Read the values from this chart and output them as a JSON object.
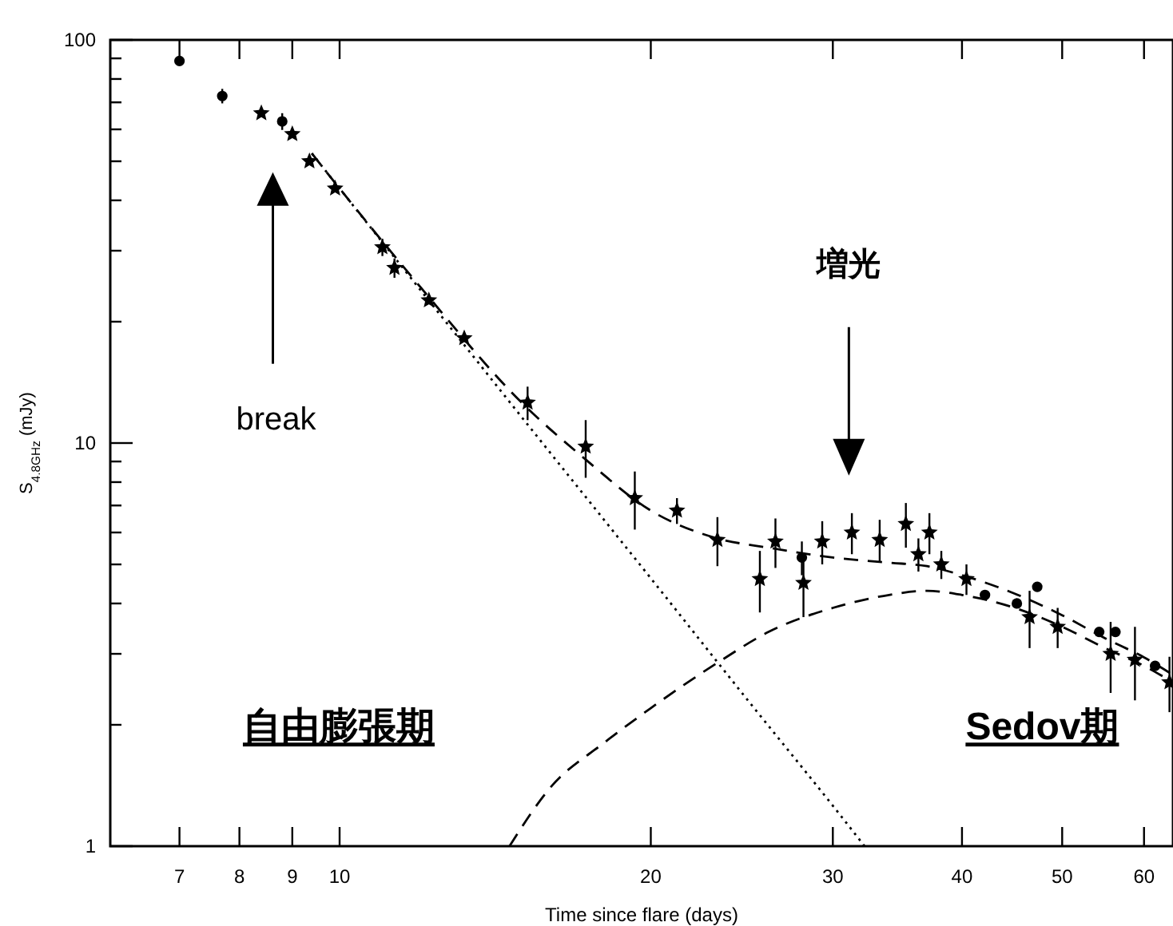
{
  "chart_data": {
    "type": "scatter",
    "log": "xy",
    "xlabel": "Time since flare (days)",
    "ylabel": "S$_{4.8GHz}$ (mJy)",
    "xlim": [
      6,
      64
    ],
    "ylim": [
      1,
      100
    ],
    "xticks": [
      7,
      8,
      9,
      10,
      20,
      30,
      40,
      50,
      60
    ],
    "yticks": [
      1,
      {
        "value": 2,
        "label": null
      },
      {
        "value": 3,
        "label": null
      },
      {
        "value": 4,
        "label": null
      },
      {
        "value": 5,
        "label": null
      },
      {
        "value": 6,
        "label": null
      },
      {
        "value": 7,
        "label": null
      },
      {
        "value": 8,
        "label": null
      },
      {
        "value": 9,
        "label": null
      },
      10,
      {
        "value": 20,
        "label": null
      },
      {
        "value": 30,
        "label": null
      },
      {
        "value": 40,
        "label": null
      },
      {
        "value": 50,
        "label": null
      },
      {
        "value": 60,
        "label": null
      },
      {
        "value": 70,
        "label": null
      },
      {
        "value": 80,
        "label": null
      },
      {
        "value": 90,
        "label": null
      },
      100
    ],
    "grid": false,
    "series": [
      {
        "marker": "circle",
        "color": "#000000",
        "x": [
          7.0,
          7.7,
          8.8,
          28.0,
          42.1,
          45.2,
          47.3,
          54.3,
          56.3,
          61.5
        ],
        "values": [
          88.7,
          72.6,
          62.8,
          5.2,
          4.2,
          4.0,
          4.4,
          3.4,
          3.4,
          2.8
        ],
        "errors": [
          null,
          3,
          3,
          0.5,
          null,
          null,
          null,
          null,
          null,
          null
        ]
      },
      {
        "marker": "star",
        "color": "#000000",
        "x": [
          8.4,
          9.0,
          9.35,
          9.9,
          11.0,
          11.3,
          12.2,
          13.2,
          15.2,
          17.3,
          19.3,
          21.2,
          23.2,
          25.5,
          26.4,
          28.1,
          29.3,
          31.3,
          33.3,
          35.3,
          36.3,
          37.2,
          38.2,
          40.4,
          46.5,
          49.5,
          55.7,
          58.8,
          63.5
        ],
        "values": [
          65.8,
          58.4,
          50.0,
          42.8,
          30.6,
          27.2,
          22.6,
          18.2,
          12.6,
          9.8,
          7.3,
          6.8,
          5.75,
          4.6,
          5.7,
          4.5,
          5.7,
          6.0,
          5.75,
          6.3,
          5.3,
          6.0,
          5.0,
          4.6,
          3.7,
          3.5,
          3.0,
          2.9,
          2.55
        ],
        "errors": [
          null,
          null,
          null,
          null,
          1.5,
          1.5,
          null,
          null,
          1.2,
          1.6,
          1.2,
          0.5,
          0.8,
          0.8,
          0.8,
          0.8,
          0.7,
          0.7,
          0.7,
          0.8,
          0.5,
          0.7,
          0.4,
          0.4,
          0.6,
          0.4,
          0.6,
          0.6,
          0.4
        ]
      },
      {
        "type": "line",
        "marker": "none",
        "line_style": "dotted",
        "color": "#000000",
        "x": [
          9.4,
          10,
          12,
          15,
          20,
          25,
          30,
          32.2
        ],
        "values": [
          52.3,
          42.8,
          23.8,
          11.6,
          4.62,
          2.25,
          1.26,
          1.0
        ]
      },
      {
        "type": "line",
        "marker": "none",
        "line_style": "dashed",
        "color": "#000000",
        "x": [
          14.6,
          16,
          18,
          20,
          23.2,
          26,
          30,
          34,
          37,
          40,
          45,
          50,
          55,
          60,
          64
        ],
        "values": [
          1.0,
          1.4,
          1.8,
          2.2,
          2.85,
          3.4,
          3.9,
          4.2,
          4.3,
          4.2,
          3.9,
          3.5,
          3.1,
          2.8,
          2.55
        ]
      },
      {
        "type": "line",
        "marker": "none",
        "line_style": "dashed",
        "color": "#000000",
        "x": [
          9.4,
          10,
          12,
          15,
          17.3,
          20,
          23.2,
          26,
          30,
          34,
          37,
          40,
          45,
          50,
          55,
          60,
          64
        ],
        "values": [
          52.3,
          42.8,
          24.2,
          12.6,
          9.1,
          6.8,
          5.8,
          5.5,
          5.2,
          5.05,
          4.95,
          4.7,
          4.23,
          3.74,
          3.28,
          2.94,
          2.66
        ]
      }
    ],
    "annotations": [
      "break",
      "増光",
      "自由膨張期",
      "Sedov期"
    ]
  }
}
